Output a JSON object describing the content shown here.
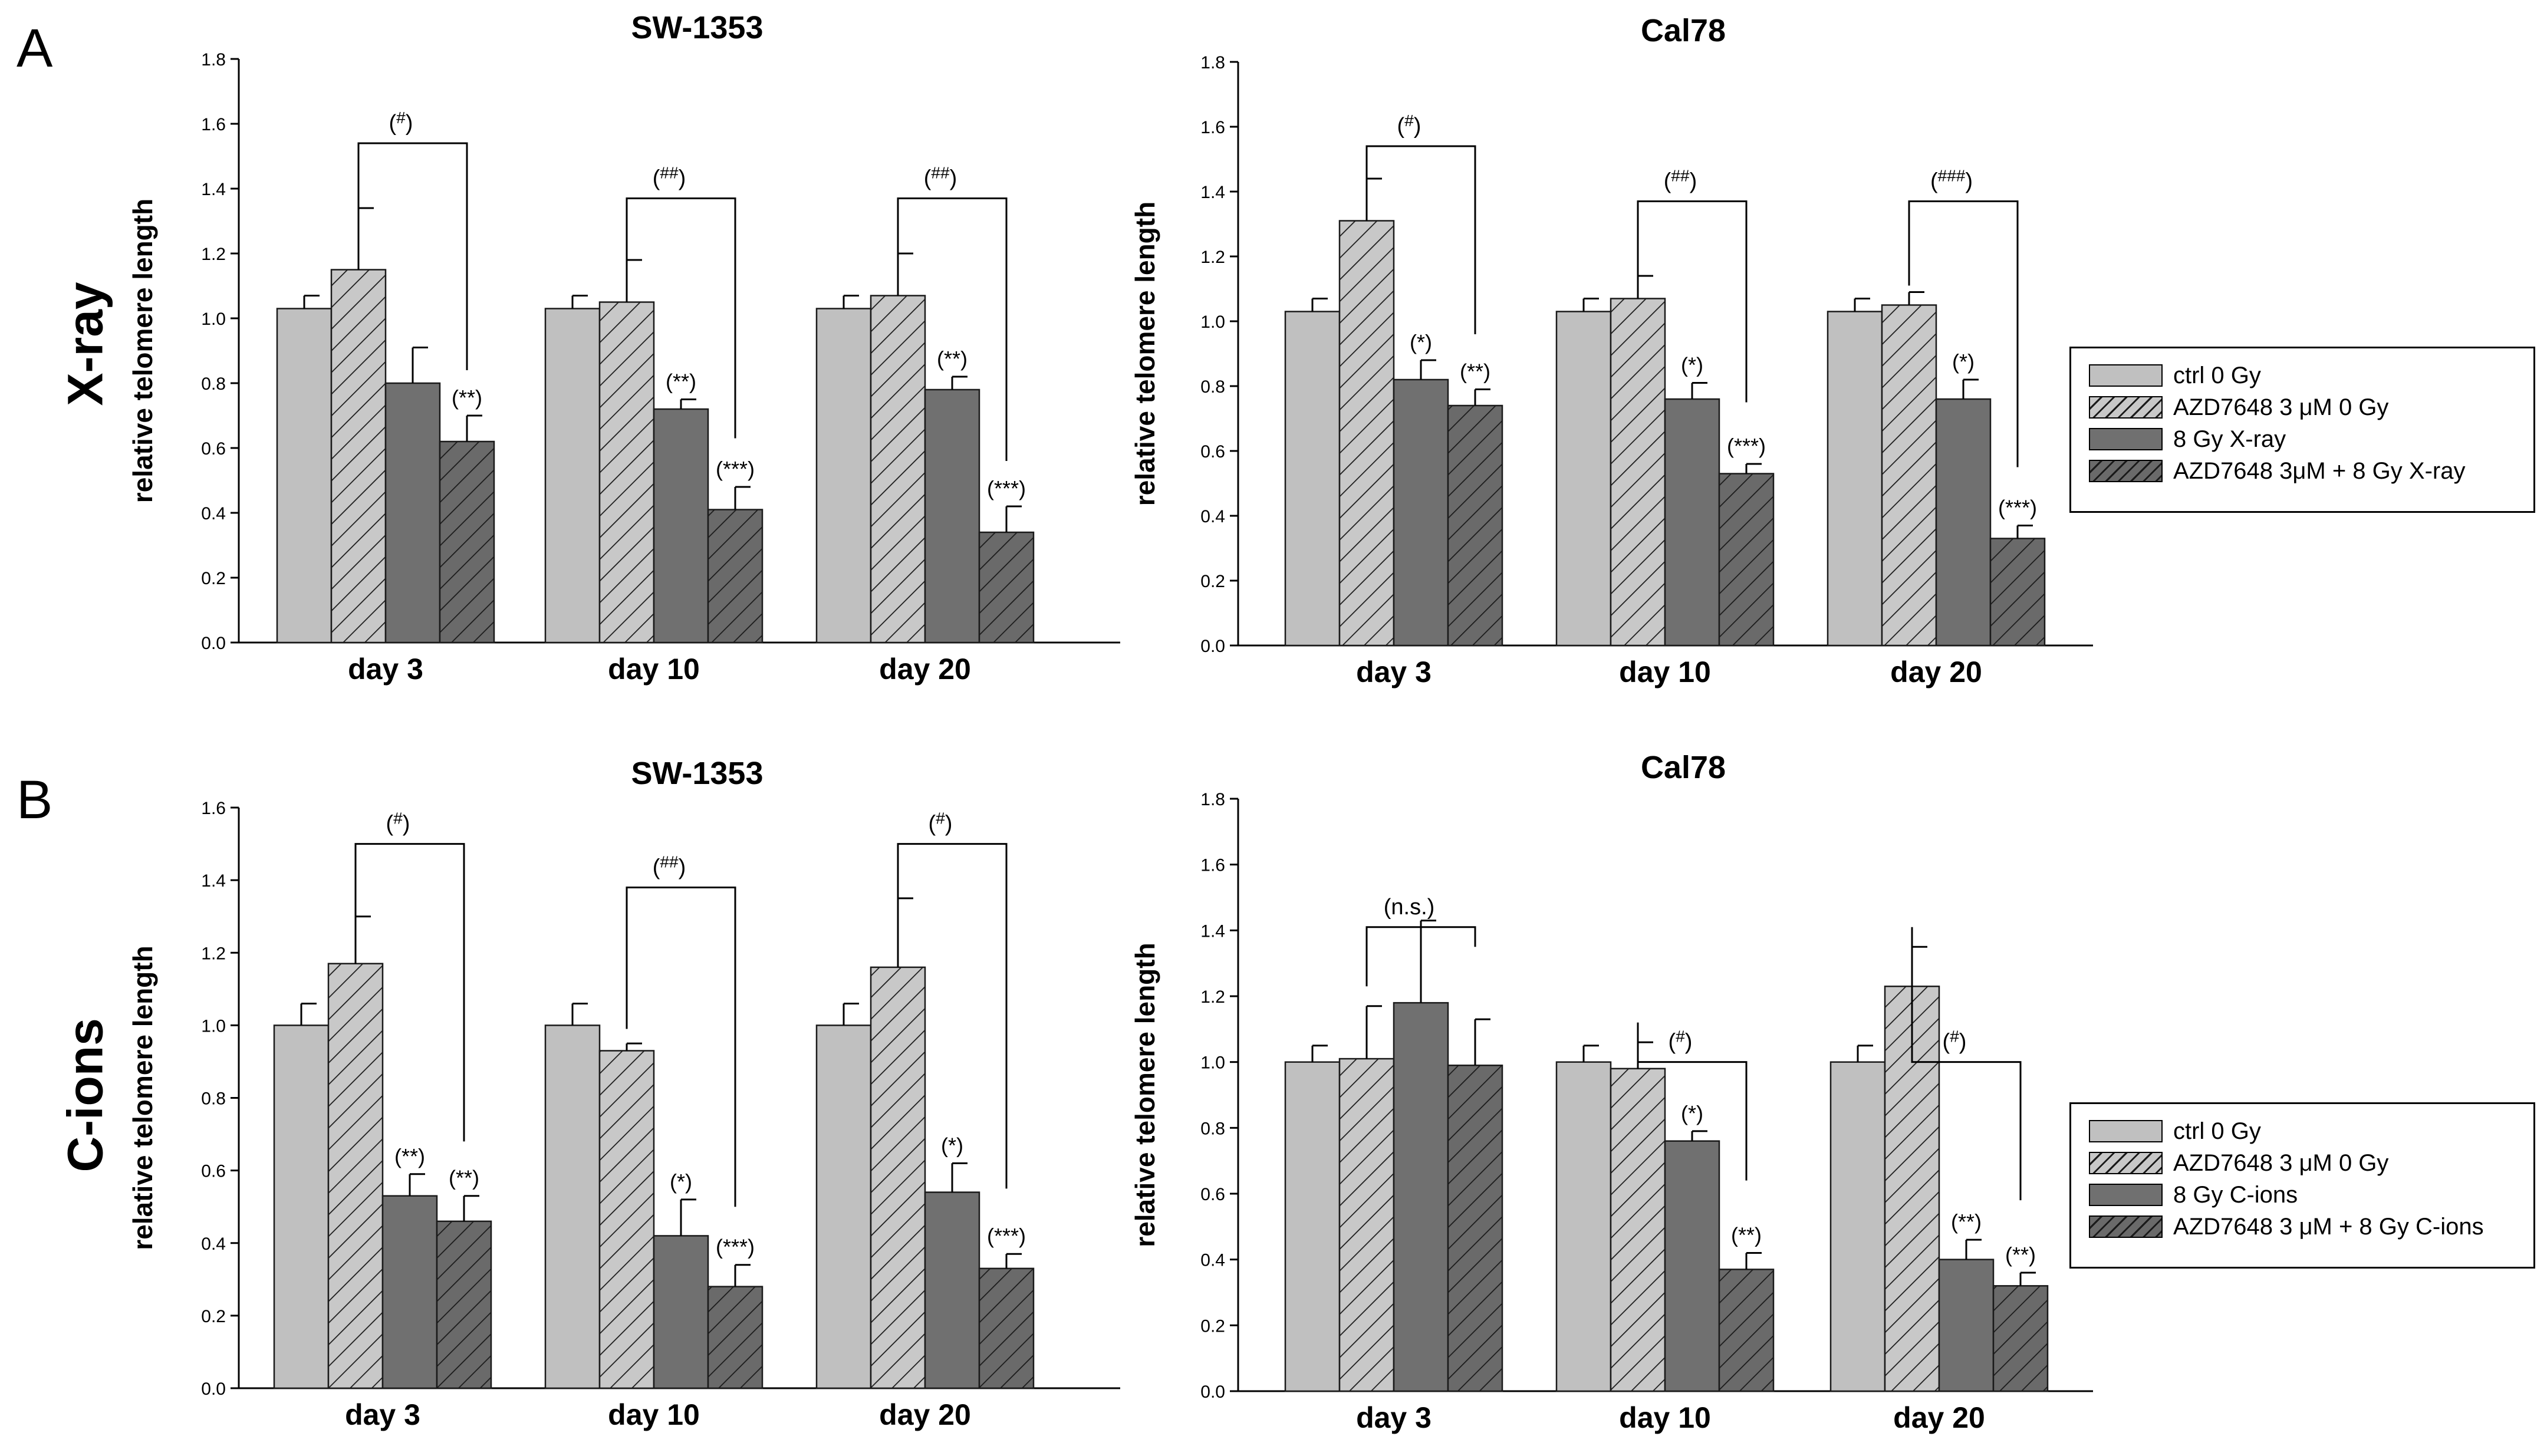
{
  "panel_letters": {
    "a": "A",
    "b": "B"
  },
  "row_labels": {
    "a": "X-ray",
    "b": "C-ions"
  },
  "legend_a": {
    "items": [
      "ctrl 0 Gy",
      "AZD7648 3 μM 0 Gy",
      "8 Gy X-ray",
      "AZD7648 3μM + 8 Gy X-ray"
    ]
  },
  "legend_b": {
    "items": [
      "ctrl 0 Gy",
      "AZD7648 3 μM 0 Gy",
      "8 Gy C-ions",
      "AZD7648 3 μM + 8 Gy C-ions"
    ]
  },
  "colors": {
    "ctrl": "#c0c0c0",
    "azd": "#c8c8c8",
    "irr": "#707070",
    "combo": "#6a6a6a",
    "edge": "#1a1a1a"
  },
  "chart_data": [
    {
      "type": "bar",
      "title": "SW-1353",
      "ylabel": "relative telomere length",
      "xlabel": "",
      "categories": [
        "day 3",
        "day 10",
        "day 20"
      ],
      "ylim": [
        0,
        1.8
      ],
      "yticks": [
        0,
        0.2,
        0.4,
        0.6,
        0.8,
        1.0,
        1.2,
        1.4,
        1.6,
        1.8
      ],
      "yticklabels": [
        "0.0",
        "0.2",
        "0.4",
        "0.6",
        "0.8",
        "1.0",
        "1.2",
        "1.4",
        "1.6",
        "1.8"
      ],
      "series": [
        {
          "name": "ctrl 0 Gy",
          "values": [
            1.03,
            1.03,
            1.03
          ],
          "errors": [
            0.04,
            0.04,
            0.04
          ]
        },
        {
          "name": "AZD7648 3 μM 0 Gy",
          "values": [
            1.15,
            1.05,
            1.07
          ],
          "errors": [
            0.19,
            0.13,
            0.13
          ]
        },
        {
          "name": "8 Gy X-ray",
          "values": [
            0.8,
            0.72,
            0.78
          ],
          "errors": [
            0.11,
            0.03,
            0.04
          ]
        },
        {
          "name": "AZD7648 3μM + 8 Gy X-ray",
          "values": [
            0.62,
            0.41,
            0.34
          ],
          "errors": [
            0.08,
            0.07,
            0.08
          ]
        }
      ],
      "bar_labels": [
        [
          "",
          "",
          "",
          "(**)"
        ],
        [
          "",
          "",
          "(**)",
          "(***)"
        ],
        [
          "",
          "",
          "(**)",
          "(***)"
        ]
      ],
      "brackets": [
        {
          "top": 1.54,
          "left_end": 1.15,
          "right_end": 0.62,
          "label_prefix": "(",
          "label_sup": "#",
          "label_suffix": ")"
        },
        {
          "top": 1.37,
          "left_end": 1.05,
          "right_end": 0.41,
          "label_prefix": "(",
          "label_sup": "##",
          "label_suffix": ")"
        },
        {
          "top": 1.37,
          "left_end": 1.07,
          "right_end": 0.34,
          "label_prefix": "(",
          "label_sup": "##",
          "label_suffix": ")"
        }
      ]
    },
    {
      "type": "bar",
      "title": "Cal78",
      "ylabel": "relative telomere length",
      "xlabel": "",
      "categories": [
        "day 3",
        "day 10",
        "day 20"
      ],
      "ylim": [
        0,
        1.8
      ],
      "yticks": [
        0,
        0.2,
        0.4,
        0.6,
        0.8,
        1.0,
        1.2,
        1.4,
        1.6,
        1.8
      ],
      "yticklabels": [
        "0.0",
        "0.2",
        "0.4",
        "0.6",
        "0.8",
        "1.0",
        "1.2",
        "1.4",
        "1.6",
        "1.8"
      ],
      "series": [
        {
          "name": "ctrl 0 Gy",
          "values": [
            1.03,
            1.03,
            1.03
          ],
          "errors": [
            0.04,
            0.04,
            0.04
          ]
        },
        {
          "name": "AZD7648 3 μM 0 Gy",
          "values": [
            1.31,
            1.07,
            1.05
          ],
          "errors": [
            0.13,
            0.07,
            0.04
          ]
        },
        {
          "name": "8 Gy X-ray",
          "values": [
            0.82,
            0.76,
            0.76
          ],
          "errors": [
            0.06,
            0.05,
            0.06
          ]
        },
        {
          "name": "AZD7648 3μM + 8 Gy X-ray",
          "values": [
            0.74,
            0.53,
            0.33
          ],
          "errors": [
            0.05,
            0.03,
            0.04
          ]
        }
      ],
      "bar_labels": [
        [
          "",
          "",
          "(*)",
          "(**)"
        ],
        [
          "",
          "",
          "(*)",
          "(***)"
        ],
        [
          "",
          "",
          "(*)",
          "(***)"
        ]
      ],
      "brackets": [
        {
          "top": 1.54,
          "left_end": 1.31,
          "right_end": 0.74,
          "label_prefix": "(",
          "label_sup": "#",
          "label_suffix": ")"
        },
        {
          "top": 1.37,
          "left_end": 1.07,
          "right_end": 0.53,
          "label_prefix": "(",
          "label_sup": "##",
          "label_suffix": ")"
        },
        {
          "top": 1.37,
          "left_end": 1.05,
          "right_end": 0.33,
          "label_prefix": "(",
          "label_sup": "###",
          "label_suffix": ")"
        }
      ]
    },
    {
      "type": "bar",
      "title": "SW-1353",
      "ylabel": "relative telomere length",
      "xlabel": "",
      "categories": [
        "day 3",
        "day 10",
        "day 20"
      ],
      "ylim": [
        0,
        1.6
      ],
      "yticks": [
        0,
        0.2,
        0.4,
        0.6,
        0.8,
        1.0,
        1.2,
        1.4,
        1.6
      ],
      "yticklabels": [
        "0.0",
        "0.2",
        "0.4",
        "0.6",
        "0.8",
        "1.0",
        "1.2",
        "1.4",
        "1.6"
      ],
      "series": [
        {
          "name": "ctrl 0 Gy",
          "values": [
            1.0,
            1.0,
            1.0
          ],
          "errors": [
            0.06,
            0.06,
            0.06
          ]
        },
        {
          "name": "AZD7648 3 μM 0 Gy",
          "values": [
            1.17,
            0.93,
            1.16
          ],
          "errors": [
            0.13,
            0.02,
            0.19
          ]
        },
        {
          "name": "8 Gy C-ions",
          "values": [
            0.53,
            0.42,
            0.54
          ],
          "errors": [
            0.06,
            0.1,
            0.08
          ]
        },
        {
          "name": "AZD7648 3 μM + 8 Gy C-ions",
          "values": [
            0.46,
            0.28,
            0.33
          ],
          "errors": [
            0.07,
            0.06,
            0.04
          ]
        }
      ],
      "bar_labels": [
        [
          "",
          "",
          "(**)",
          "(**)"
        ],
        [
          "",
          "",
          "(*)",
          "(***)"
        ],
        [
          "",
          "",
          "(*)",
          "(***)"
        ]
      ],
      "brackets": [
        {
          "top": 1.5,
          "left_end": 1.17,
          "right_end": 0.46,
          "label_prefix": "(",
          "label_sup": "#",
          "label_suffix": ")"
        },
        {
          "top": 1.38,
          "left_end": 0.93,
          "right_end": 0.28,
          "label_prefix": "(",
          "label_sup": "##",
          "label_suffix": ")"
        },
        {
          "top": 1.5,
          "left_end": 1.16,
          "right_end": 0.33,
          "label_prefix": "(",
          "label_sup": "#",
          "label_suffix": ")"
        }
      ]
    },
    {
      "type": "bar",
      "title": "Cal78",
      "ylabel": "relative telomere length",
      "xlabel": "",
      "categories": [
        "day 3",
        "day 10",
        "day 20"
      ],
      "ylim": [
        0,
        1.8
      ],
      "yticks": [
        0,
        0.2,
        0.4,
        0.6,
        0.8,
        1.0,
        1.2,
        1.4,
        1.6,
        1.8
      ],
      "yticklabels": [
        "0.0",
        "0.2",
        "0.4",
        "0.6",
        "0.8",
        "1.0",
        "1.2",
        "1.4",
        "1.6",
        "1.8"
      ],
      "series": [
        {
          "name": "ctrl 0 Gy",
          "values": [
            1.0,
            1.0,
            1.0
          ],
          "errors": [
            0.05,
            0.05,
            0.05
          ]
        },
        {
          "name": "AZD7648 3 μM 0 Gy",
          "values": [
            1.01,
            0.98,
            1.23
          ],
          "errors": [
            0.16,
            0.08,
            0.12
          ]
        },
        {
          "name": "8 Gy C-ions",
          "values": [
            1.18,
            0.76,
            0.4
          ],
          "errors": [
            0.25,
            0.03,
            0.06
          ]
        },
        {
          "name": "AZD7648 3 μM + 8 Gy C-ions",
          "values": [
            0.99,
            0.37,
            0.32
          ],
          "errors": [
            0.14,
            0.05,
            0.04
          ]
        }
      ],
      "bar_labels": [
        [
          "",
          "",
          "",
          ""
        ],
        [
          "",
          "",
          "(*)",
          "(**)"
        ],
        [
          "",
          "",
          "(**)",
          "(**)"
        ]
      ],
      "brackets": [
        {
          "top": 1.41,
          "left_end": 1.17,
          "right_end": 1.13,
          "label_prefix": "(n.s.)",
          "label_sup": "",
          "label_suffix": ""
        },
        {
          "top": 1.0,
          "left_end": 1.06,
          "right_end": 0.42,
          "label_prefix": "(",
          "label_sup": "#",
          "label_suffix": ")"
        },
        {
          "top": 1.0,
          "left_end": 1.35,
          "right_end": 0.36,
          "label_prefix": "(",
          "label_sup": "#",
          "label_suffix": ")"
        }
      ]
    }
  ]
}
